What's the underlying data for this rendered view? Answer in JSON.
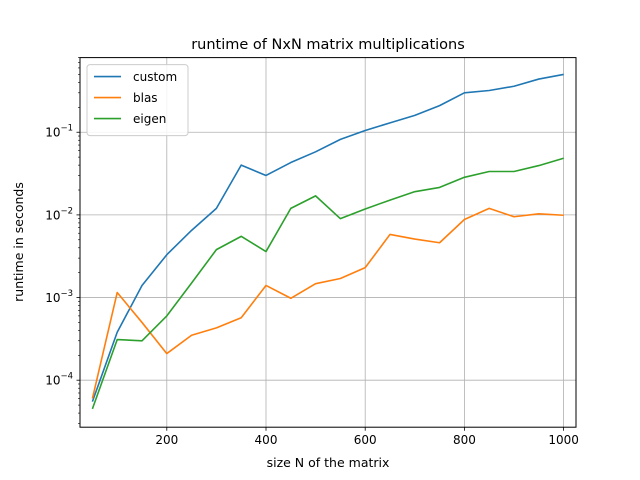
{
  "chart_data": {
    "type": "line",
    "title": "runtime of NxN matrix multiplications",
    "xlabel": "size N of the matrix",
    "ylabel": "runtime in seconds",
    "yscale": "log",
    "xlim": [
      25,
      1025
    ],
    "ylim": [
      2.7e-05,
      0.8
    ],
    "x_ticks": [
      200,
      400,
      600,
      800,
      1000
    ],
    "y_ticks": [
      {
        "value": 0.0001,
        "base": "10",
        "exp": "−4"
      },
      {
        "value": 0.001,
        "base": "10",
        "exp": "−3"
      },
      {
        "value": 0.01,
        "base": "10",
        "exp": "−2"
      },
      {
        "value": 0.1,
        "base": "10",
        "exp": "−1"
      }
    ],
    "grid": true,
    "legend_position": "top-left",
    "x": [
      50,
      100,
      150,
      200,
      250,
      300,
      350,
      400,
      450,
      500,
      550,
      600,
      650,
      700,
      750,
      800,
      850,
      900,
      950,
      1000
    ],
    "series": [
      {
        "name": "custom",
        "color": "#1f77b4",
        "values": [
          5.5e-05,
          0.00038,
          0.0014,
          0.0033,
          0.0065,
          0.012,
          0.04,
          0.03,
          0.043,
          0.058,
          0.082,
          0.105,
          0.13,
          0.16,
          0.21,
          0.3,
          0.32,
          0.36,
          0.44,
          0.5
        ]
      },
      {
        "name": "blas",
        "color": "#ff7f0e",
        "values": [
          6e-05,
          0.00115,
          0.0005,
          0.00021,
          0.00035,
          0.00043,
          0.00057,
          0.0014,
          0.00098,
          0.00147,
          0.0017,
          0.0023,
          0.0058,
          0.0051,
          0.0046,
          0.0088,
          0.012,
          0.0095,
          0.0103,
          0.0099
        ]
      },
      {
        "name": "eigen",
        "color": "#2ca02c",
        "values": [
          4.5e-05,
          0.00031,
          0.0003,
          0.0006,
          0.0015,
          0.0038,
          0.0055,
          0.0036,
          0.012,
          0.017,
          0.009,
          0.0118,
          0.0151,
          0.0191,
          0.0215,
          0.0285,
          0.0335,
          0.0335,
          0.0395,
          0.0485
        ]
      }
    ]
  }
}
